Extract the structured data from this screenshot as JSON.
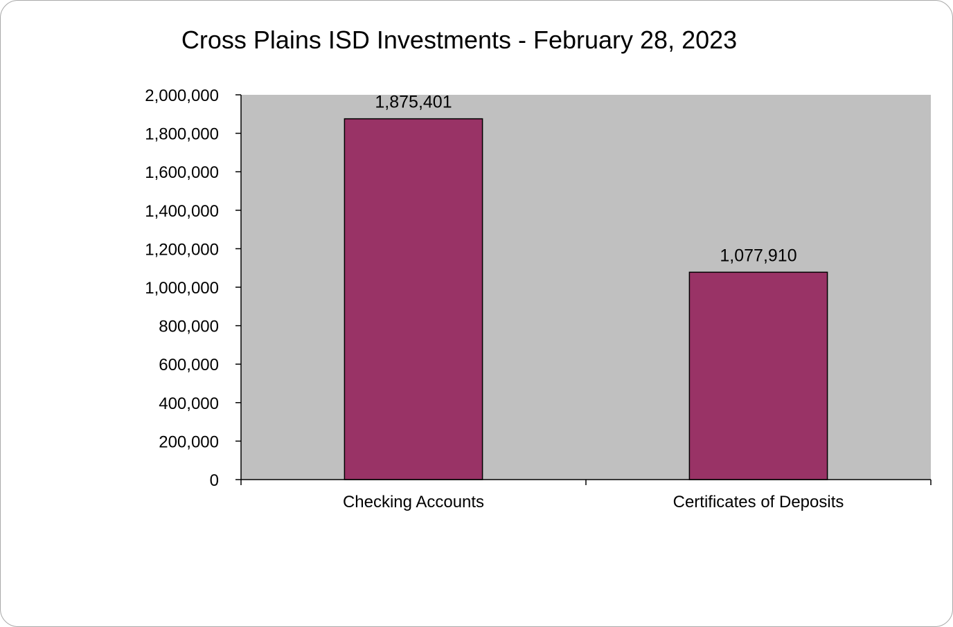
{
  "chart_data": {
    "type": "bar",
    "title": "Cross Plains ISD Investments - February 28, 2023",
    "categories": [
      "Checking Accounts",
      "Certificates of Deposits"
    ],
    "values": [
      1875401,
      1077910
    ],
    "value_labels": [
      "1,875,401",
      "1,077,910"
    ],
    "ylim": [
      0,
      2000000
    ],
    "yticks": [
      0,
      200000,
      400000,
      600000,
      800000,
      1000000,
      1200000,
      1400000,
      1600000,
      1800000,
      2000000
    ],
    "ytick_labels": [
      "0",
      "200,000",
      "400,000",
      "600,000",
      "800,000",
      "1,000,000",
      "1,200,000",
      "1,400,000",
      "1,600,000",
      "1,800,000",
      "2,000,000"
    ],
    "grid": false,
    "legend": "none",
    "colors": {
      "bar": "#993366",
      "plot_background": "#c0c0c0"
    }
  }
}
